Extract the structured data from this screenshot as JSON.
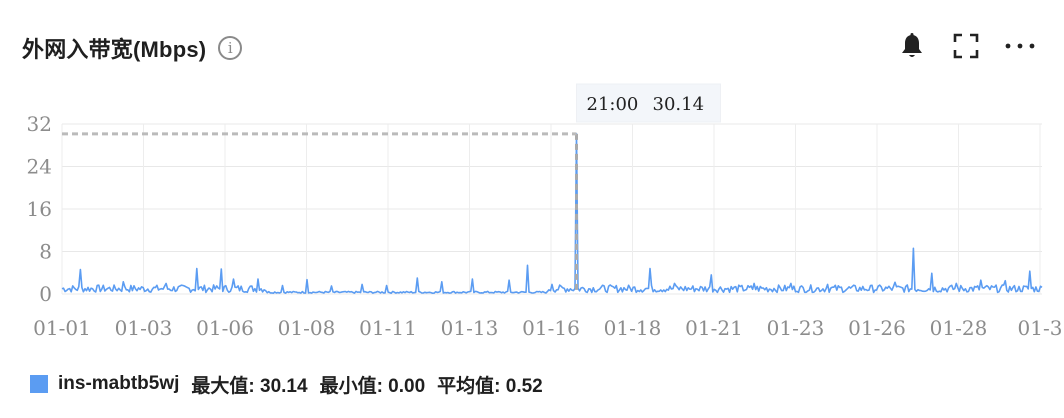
{
  "card": {
    "title": "外网入带宽(Mbps)",
    "info_icon": "info-circle-icon",
    "tools": [
      "bell-icon",
      "fullscreen-icon",
      "more-icon"
    ]
  },
  "tooltip": {
    "time": "21:00",
    "value": "30.14"
  },
  "legend": {
    "series_name": "ins-mabtb5wj",
    "max_label": "最大值: 30.14",
    "min_label": "最小值: 0.00",
    "avg_label": "平均值: 0.52",
    "color": "#5b9cf2"
  },
  "chart_data": {
    "type": "line",
    "series": [
      {
        "name": "ins-mabtb5wj",
        "peak": {
          "x": "01-15 21:00",
          "y": 30.14
        },
        "max": 30.14,
        "min": 0.0,
        "avg": 0.52
      }
    ],
    "x_ticks": [
      "01-01",
      "01-03",
      "01-06",
      "01-08",
      "01-11",
      "01-13",
      "01-16",
      "01-18",
      "01-21",
      "01-23",
      "01-26",
      "01-28",
      "01-3"
    ],
    "y_ticks": [
      "0",
      "8",
      "16",
      "24",
      "32"
    ],
    "ylim": [
      0,
      32
    ],
    "grid": true,
    "line_color": "#5b9cf2",
    "spikes": [
      {
        "i": 3,
        "y": 4.6
      },
      {
        "i": 10,
        "y": 2.3
      },
      {
        "i": 17,
        "y": 2.0
      },
      {
        "i": 22,
        "y": 4.8
      },
      {
        "i": 26,
        "y": 4.7
      },
      {
        "i": 28,
        "y": 2.8
      },
      {
        "i": 32,
        "y": 2.8
      },
      {
        "i": 36,
        "y": 1.6
      },
      {
        "i": 40,
        "y": 2.7
      },
      {
        "i": 44,
        "y": 1.5
      },
      {
        "i": 49,
        "y": 1.8
      },
      {
        "i": 53,
        "y": 1.6
      },
      {
        "i": 58,
        "y": 3.0
      },
      {
        "i": 62,
        "y": 2.3
      },
      {
        "i": 67,
        "y": 2.8
      },
      {
        "i": 73,
        "y": 2.6
      },
      {
        "i": 76,
        "y": 5.4
      },
      {
        "i": 80,
        "y": 1.8
      },
      {
        "i": 84,
        "y": 30.14
      },
      {
        "i": 96,
        "y": 4.8
      },
      {
        "i": 100,
        "y": 2.0
      },
      {
        "i": 106,
        "y": 3.6
      },
      {
        "i": 113,
        "y": 2.0
      },
      {
        "i": 119,
        "y": 2.0
      },
      {
        "i": 125,
        "y": 1.8
      },
      {
        "i": 136,
        "y": 2.2
      },
      {
        "i": 139,
        "y": 8.6
      },
      {
        "i": 142,
        "y": 3.9
      },
      {
        "i": 146,
        "y": 2.0
      },
      {
        "i": 150,
        "y": 2.6
      },
      {
        "i": 154,
        "y": 2.5
      },
      {
        "i": 158,
        "y": 4.3
      }
    ]
  }
}
